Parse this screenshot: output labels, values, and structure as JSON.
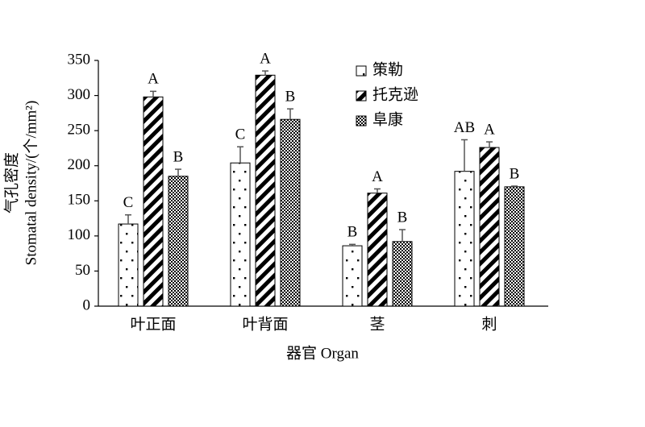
{
  "chart_data": {
    "type": "bar",
    "x_label": "器官 Organ",
    "y_label": [
      "气孔密度",
      "Stomatal density/(个/mm²)"
    ],
    "categories": [
      "叶正面",
      "叶背面",
      "茎",
      "刺"
    ],
    "series": [
      {
        "name": "策勒",
        "color": "#000000",
        "pattern": "dots",
        "values": [
          117,
          204,
          86,
          192
        ],
        "errors": [
          13,
          23,
          2,
          45
        ],
        "letters": [
          "C",
          "C",
          "B",
          "AB"
        ]
      },
      {
        "name": "托克逊",
        "color": "#000000",
        "pattern": "stripes",
        "values": [
          298,
          329,
          161,
          226
        ],
        "errors": [
          8,
          6,
          6,
          8
        ],
        "letters": [
          "A",
          "A",
          "A",
          "A"
        ]
      },
      {
        "name": "阜康",
        "color": "#000000",
        "pattern": "checks",
        "values": [
          185,
          266,
          92,
          170
        ],
        "errors": [
          10,
          15,
          17,
          1
        ],
        "letters": [
          "B",
          "B",
          "B",
          "B"
        ]
      }
    ],
    "ylim": [
      0,
      350
    ],
    "yticks": [
      0,
      50,
      100,
      150,
      200,
      250,
      300,
      350
    ],
    "grid": false,
    "legend": "top-center"
  }
}
